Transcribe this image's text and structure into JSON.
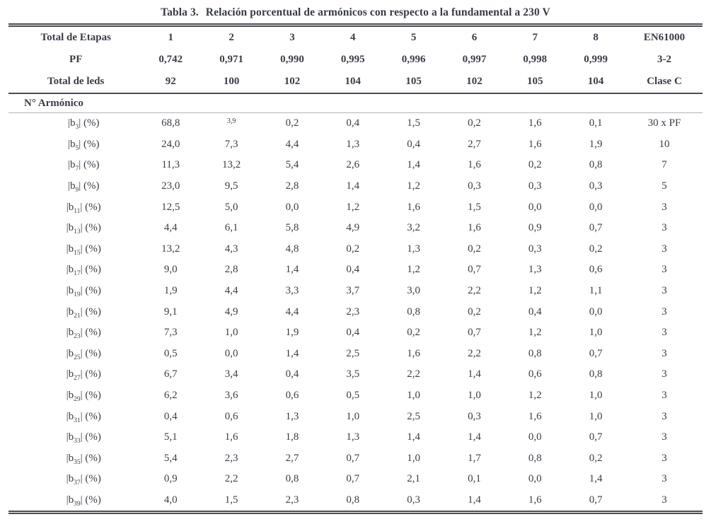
{
  "title": {
    "label": "Tabla 3.",
    "text": "Relación porcentual de armónicos con respecto a la fundamental a 230 V"
  },
  "header": {
    "row1": {
      "label": "Total de Etapas",
      "values": [
        "1",
        "2",
        "3",
        "4",
        "5",
        "6",
        "7",
        "8"
      ],
      "limit": "EN61000"
    },
    "row2": {
      "label": "PF",
      "values": [
        "0,742",
        "0,971",
        "0,990",
        "0,995",
        "0,996",
        "0,997",
        "0,998",
        "0,999"
      ],
      "limit": "3-2"
    },
    "row3": {
      "label": "Total de leds",
      "values": [
        "92",
        "100",
        "102",
        "104",
        "105",
        "102",
        "105",
        "104"
      ],
      "limit": "Clase C"
    }
  },
  "section_label": "N° Armónico",
  "row_label": {
    "prefix": "|b",
    "suffix": "| (%)"
  },
  "rows": [
    {
      "sub": "3",
      "values": [
        "68,8",
        "3,9",
        "0,2",
        "0,4",
        "1,5",
        "0,2",
        "1,6",
        "0,1"
      ],
      "limit": "30 x PF"
    },
    {
      "sub": "5",
      "values": [
        "24,0",
        "7,3",
        "4,4",
        "1,3",
        "0,4",
        "2,7",
        "1,6",
        "1,9"
      ],
      "limit": "10"
    },
    {
      "sub": "7",
      "values": [
        "11,3",
        "13,2",
        "5,4",
        "2,6",
        "1,4",
        "1,6",
        "0,2",
        "0,8"
      ],
      "limit": "7"
    },
    {
      "sub": "9",
      "values": [
        "23,0",
        "9,5",
        "2,8",
        "1,4",
        "1,2",
        "0,3",
        "0,3",
        "0,3"
      ],
      "limit": "5"
    },
    {
      "sub": "11",
      "values": [
        "12,5",
        "5,0",
        "0,0",
        "1,2",
        "1,6",
        "1,5",
        "0,0",
        "0,0"
      ],
      "limit": "3"
    },
    {
      "sub": "13",
      "values": [
        "4,4",
        "6,1",
        "5,8",
        "4,9",
        "3,2",
        "1,6",
        "0,9",
        "0,7"
      ],
      "limit": "3"
    },
    {
      "sub": "15",
      "values": [
        "13,2",
        "4,3",
        "4,8",
        "0,2",
        "1,3",
        "0,2",
        "0,3",
        "0,2"
      ],
      "limit": "3"
    },
    {
      "sub": "17",
      "values": [
        "9,0",
        "2,8",
        "1,4",
        "0,4",
        "1,2",
        "0,7",
        "1,3",
        "0,6"
      ],
      "limit": "3"
    },
    {
      "sub": "19",
      "values": [
        "1,9",
        "4,4",
        "3,3",
        "3,7",
        "3,0",
        "2,2",
        "1,2",
        "1,1"
      ],
      "limit": "3"
    },
    {
      "sub": "21",
      "values": [
        "9,1",
        "4,9",
        "4,4",
        "2,3",
        "0,8",
        "0,2",
        "0,4",
        "0,0"
      ],
      "limit": "3"
    },
    {
      "sub": "23",
      "values": [
        "7,3",
        "1,0",
        "1,9",
        "0,4",
        "0,2",
        "0,7",
        "1,2",
        "1,0"
      ],
      "limit": "3"
    },
    {
      "sub": "25",
      "values": [
        "0,5",
        "0,0",
        "1,4",
        "2,5",
        "1,6",
        "2,2",
        "0,8",
        "0,7"
      ],
      "limit": "3"
    },
    {
      "sub": "27",
      "values": [
        "6,7",
        "3,4",
        "0,4",
        "3,5",
        "2,2",
        "1,4",
        "0,6",
        "0,8"
      ],
      "limit": "3"
    },
    {
      "sub": "29",
      "values": [
        "6,2",
        "3,6",
        "0,6",
        "0,5",
        "1,0",
        "1,0",
        "1,2",
        "1,0"
      ],
      "limit": "3"
    },
    {
      "sub": "31",
      "values": [
        "0,4",
        "0,6",
        "1,3",
        "1,0",
        "2,5",
        "0,3",
        "1,6",
        "1,0"
      ],
      "limit": "3"
    },
    {
      "sub": "33",
      "values": [
        "5,1",
        "1,6",
        "1,8",
        "1,3",
        "1,4",
        "1,4",
        "0,0",
        "0,7"
      ],
      "limit": "3"
    },
    {
      "sub": "35",
      "values": [
        "5,4",
        "2,3",
        "2,7",
        "0,7",
        "1,0",
        "1,7",
        "0,8",
        "0,2"
      ],
      "limit": "3"
    },
    {
      "sub": "37",
      "values": [
        "0,9",
        "2,2",
        "0,8",
        "0,7",
        "2,1",
        "0,1",
        "0,0",
        "1,4"
      ],
      "limit": "3"
    },
    {
      "sub": "39",
      "values": [
        "4,0",
        "1,5",
        "2,3",
        "0,8",
        "0,3",
        "1,4",
        "1,6",
        "0,7"
      ],
      "limit": "3"
    }
  ],
  "small_cells": [
    {
      "row": 0,
      "col": 1
    }
  ],
  "colors": {
    "text": "#3a3d47",
    "rule_dark": "#4a4c55",
    "rule_faint": "#b0b3bb",
    "background": "#ffffff"
  }
}
